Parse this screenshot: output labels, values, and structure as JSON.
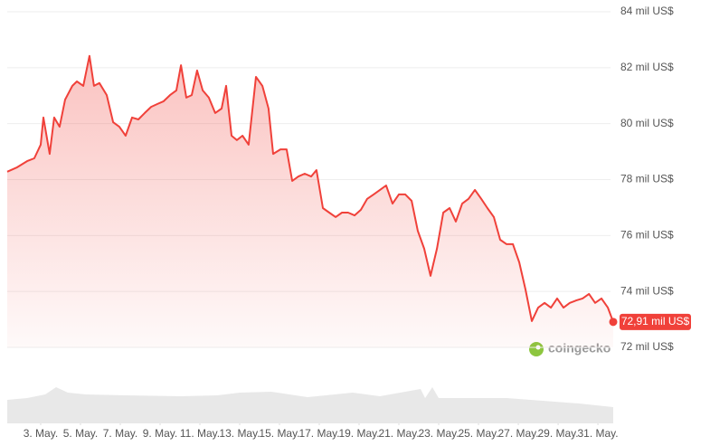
{
  "chart_data": {
    "type": "line",
    "x": [
      1.32,
      1.82,
      2.32,
      2.68,
      3,
      3.14,
      3.45,
      3.68,
      3.95,
      4.23,
      4.59,
      4.82,
      5.14,
      5.45,
      5.68,
      5.95,
      6.32,
      6.64,
      6.95,
      7.27,
      7.59,
      7.91,
      8.23,
      8.55,
      8.86,
      9.18,
      9.5,
      9.82,
      10.05,
      10.32,
      10.59,
      10.86,
      11.14,
      11.45,
      11.77,
      12.09,
      12.32,
      12.59,
      12.86,
      13.14,
      13.45,
      13.82,
      14.14,
      14.45,
      14.68,
      15.05,
      15.36,
      15.64,
      15.95,
      16.27,
      16.59,
      16.86,
      17.18,
      17.5,
      17.82,
      18.14,
      18.45,
      18.77,
      19.09,
      19.41,
      19.73,
      20.05,
      20.36,
      20.68,
      21,
      21.32,
      21.64,
      21.95,
      22.27,
      22.59,
      22.91,
      23.23,
      23.55,
      23.86,
      24.18,
      24.5,
      24.82,
      25.14,
      25.45,
      25.77,
      26.09,
      26.41,
      26.73,
      27.05,
      27.36,
      27.68,
      28,
      28.32,
      28.64,
      28.95,
      29.27,
      29.59,
      29.91,
      30.23,
      30.55,
      30.86,
      31.18,
      31.5,
      31.77
    ],
    "series": [
      {
        "color": "#f0413a",
        "values": [
          78.28,
          78.44,
          78.66,
          78.76,
          79.25,
          80.22,
          78.92,
          80.22,
          79.89,
          80.86,
          81.35,
          81.51,
          81.35,
          82.42,
          81.35,
          81.45,
          81.02,
          80.05,
          79.89,
          79.57,
          80.22,
          80.15,
          80.38,
          80.6,
          80.7,
          80.8,
          81.02,
          81.19,
          82.09,
          80.93,
          81.02,
          81.9,
          81.19,
          80.93,
          80.38,
          80.54,
          81.35,
          79.57,
          79.41,
          79.57,
          79.25,
          81.67,
          81.35,
          80.54,
          78.92,
          79.08,
          79.08,
          77.95,
          78.11,
          78.21,
          78.11,
          78.34,
          76.98,
          76.82,
          76.66,
          76.82,
          76.82,
          76.72,
          76.92,
          77.31,
          77.47,
          77.63,
          77.79,
          77.14,
          77.47,
          77.47,
          77.24,
          76.17,
          75.53,
          74.56,
          75.53,
          76.82,
          76.98,
          76.5,
          77.14,
          77.31,
          77.63,
          77.31,
          76.98,
          76.66,
          75.85,
          75.69,
          75.69,
          75.04,
          74.07,
          72.94,
          73.42,
          73.59,
          73.42,
          73.75,
          73.42,
          73.59,
          73.68,
          73.75,
          73.91,
          73.59,
          73.75,
          73.42,
          72.91
        ]
      }
    ],
    "current_price": {
      "value": 72.91,
      "label": "72,91 mil US$"
    },
    "xlim": [
      1.32,
      31.77
    ],
    "xticks": [
      {
        "value": 3,
        "label": "3. May."
      },
      {
        "value": 5,
        "label": "5. May."
      },
      {
        "value": 7,
        "label": "7. May."
      },
      {
        "value": 9,
        "label": "9. May."
      },
      {
        "value": 11,
        "label": "11. May."
      },
      {
        "value": 13,
        "label": "13. May."
      },
      {
        "value": 15,
        "label": "15. May."
      },
      {
        "value": 17,
        "label": "17. May."
      },
      {
        "value": 19,
        "label": "19. May."
      },
      {
        "value": 21,
        "label": "21. May."
      },
      {
        "value": 23,
        "label": "23. May."
      },
      {
        "value": 25,
        "label": "25. May."
      },
      {
        "value": 27,
        "label": "27. May."
      },
      {
        "value": 29,
        "label": "29. May."
      },
      {
        "value": 31,
        "label": "31. May."
      }
    ],
    "ylim": [
      72,
      84
    ],
    "yticks": [
      {
        "value": 72,
        "label": "72 mil US$"
      },
      {
        "value": 74,
        "label": "74 mil US$"
      },
      {
        "value": 76,
        "label": "76 mil US$"
      },
      {
        "value": 78,
        "label": "78 mil US$"
      },
      {
        "value": 80,
        "label": "80 mil US$"
      },
      {
        "value": 82,
        "label": "82 mil US$"
      },
      {
        "value": 84,
        "label": "84 mil US$"
      }
    ],
    "grid": true,
    "watermark": "coingecko"
  }
}
